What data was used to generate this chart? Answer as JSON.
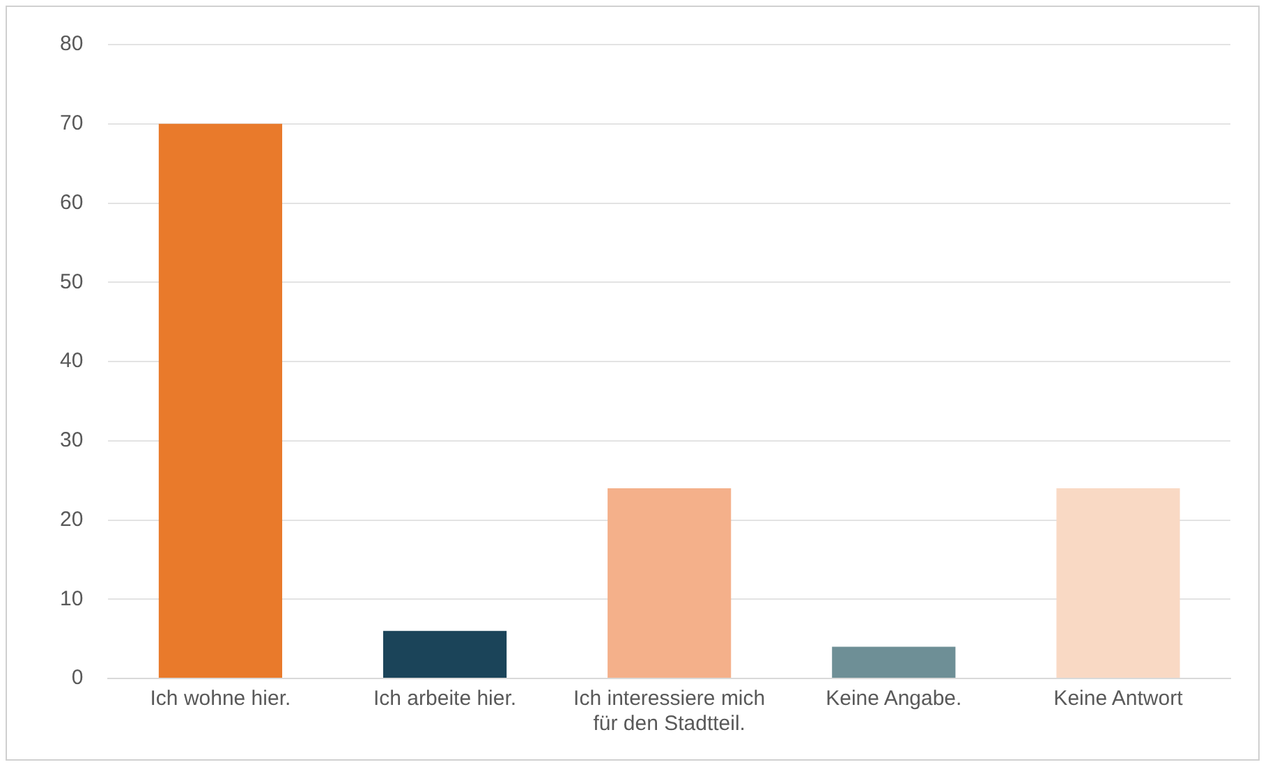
{
  "chart_data": {
    "type": "bar",
    "categories": [
      "Ich wohne hier.",
      "Ich arbeite hier.",
      "Ich interessiere mich für den Stadtteil.",
      "Keine Angabe.",
      "Keine Antwort"
    ],
    "values": [
      70,
      6,
      24,
      4,
      24
    ],
    "colors": [
      "#e97a2b",
      "#1b4459",
      "#f4b08a",
      "#6e8f96",
      "#f9d9c4"
    ],
    "ylim": [
      0,
      80
    ],
    "yticks": [
      0,
      10,
      20,
      30,
      40,
      50,
      60,
      70,
      80
    ],
    "grid": "y",
    "legend": false
  }
}
